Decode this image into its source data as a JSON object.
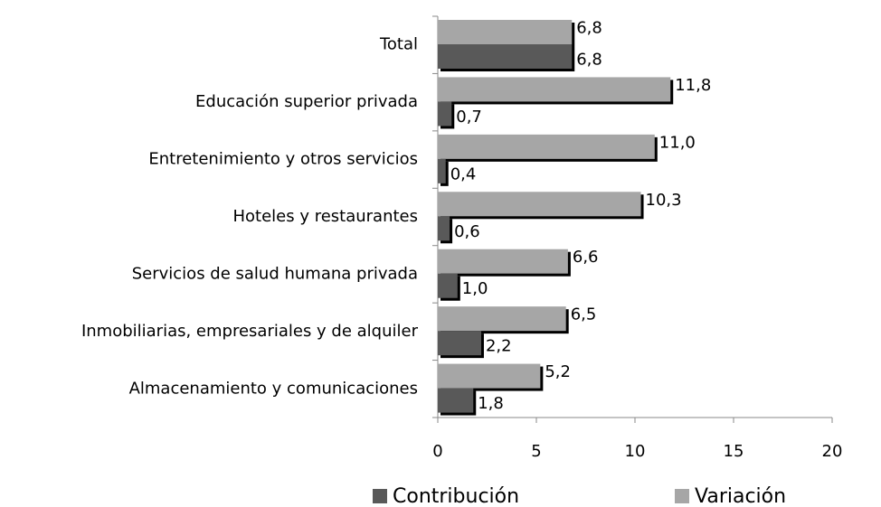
{
  "chart_data": {
    "type": "bar",
    "orientation": "horizontal",
    "categories": [
      "Total",
      "Educación superior privada",
      "Entretenimiento y otros servicios",
      "Hoteles y restaurantes",
      "Servicios de salud humana privada",
      "Inmobiliarias, empresariales y de alquiler",
      "Almacenamiento y comunicaciones"
    ],
    "series": [
      {
        "name": "Contribución",
        "color": "#595959",
        "values": [
          6.8,
          0.7,
          0.4,
          0.6,
          1.0,
          2.2,
          1.8
        ],
        "value_labels": [
          "6,8",
          "0,7",
          "0,4",
          "0,6",
          "1,0",
          "2,2",
          "1,8"
        ]
      },
      {
        "name": "Variación",
        "color": "#a6a6a6",
        "values": [
          6.8,
          11.8,
          11.0,
          10.3,
          6.6,
          6.5,
          5.2
        ],
        "value_labels": [
          "6,8",
          "11,8",
          "11,0",
          "10,3",
          "6,6",
          "6,5",
          "5,2"
        ]
      }
    ],
    "xlim": [
      0,
      20
    ],
    "xticks": [
      0,
      5,
      10,
      15,
      20
    ],
    "legend": "bottom-right"
  }
}
